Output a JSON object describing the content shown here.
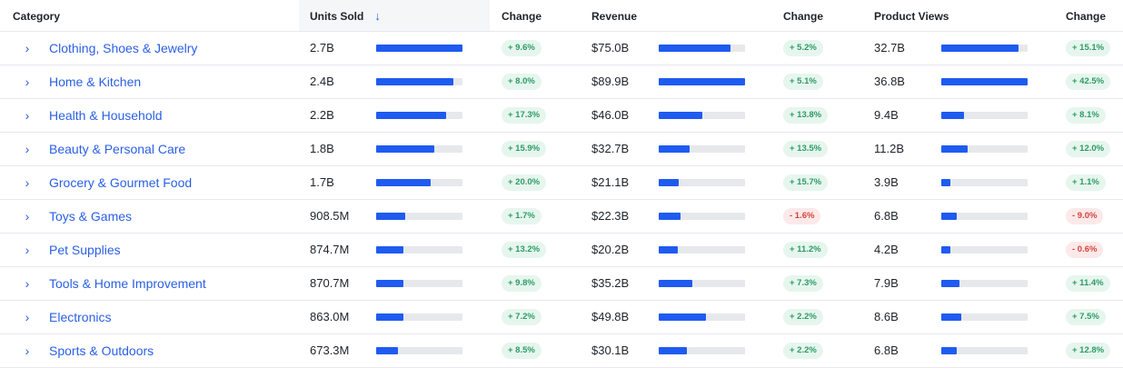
{
  "header": {
    "category": "Category",
    "units_sold": "Units Sold",
    "change1": "Change",
    "revenue": "Revenue",
    "change2": "Change",
    "product_views": "Product Views",
    "change3": "Change",
    "sort_icon": "arrow-down-icon"
  },
  "icons": {
    "expand": "chevron-right-icon"
  },
  "colors": {
    "accent": "#1f5bf0",
    "link": "#2a5fe6",
    "positive": "#2e9b66",
    "negative": "#d2453f"
  },
  "rows": [
    {
      "category": "Clothing, Shoes & Jewelry",
      "units": "2.7B",
      "units_change": "+ 9.6%",
      "revenue": "$75.0B",
      "revenue_change": "+ 5.2%",
      "views": "32.7B",
      "views_change": "+ 15.1%",
      "units_level": 1.0,
      "revenue_level": 0.83,
      "views_level": 0.89
    },
    {
      "category": "Home & Kitchen",
      "units": "2.4B",
      "units_change": "+ 8.0%",
      "revenue": "$89.9B",
      "revenue_change": "+ 5.1%",
      "views": "36.8B",
      "views_change": "+ 42.5%",
      "units_level": 0.89,
      "revenue_level": 1.0,
      "views_level": 1.0
    },
    {
      "category": "Health & Household",
      "units": "2.2B",
      "units_change": "+ 17.3%",
      "revenue": "$46.0B",
      "revenue_change": "+ 13.8%",
      "views": "9.4B",
      "views_change": "+ 8.1%",
      "units_level": 0.81,
      "revenue_level": 0.51,
      "views_level": 0.26
    },
    {
      "category": "Beauty & Personal Care",
      "units": "1.8B",
      "units_change": "+ 15.9%",
      "revenue": "$32.7B",
      "revenue_change": "+ 13.5%",
      "views": "11.2B",
      "views_change": "+ 12.0%",
      "units_level": 0.67,
      "revenue_level": 0.36,
      "views_level": 0.3
    },
    {
      "category": "Grocery & Gourmet Food",
      "units": "1.7B",
      "units_change": "+ 20.0%",
      "revenue": "$21.1B",
      "revenue_change": "+ 15.7%",
      "views": "3.9B",
      "views_change": "+ 1.1%",
      "units_level": 0.63,
      "revenue_level": 0.23,
      "views_level": 0.11
    },
    {
      "category": "Toys & Games",
      "units": "908.5M",
      "units_change": "+ 1.7%",
      "revenue": "$22.3B",
      "revenue_change": "- 1.6%",
      "views": "6.8B",
      "views_change": "- 9.0%",
      "units_level": 0.34,
      "revenue_level": 0.25,
      "views_level": 0.18
    },
    {
      "category": "Pet Supplies",
      "units": "874.7M",
      "units_change": "+ 13.2%",
      "revenue": "$20.2B",
      "revenue_change": "+ 11.2%",
      "views": "4.2B",
      "views_change": "- 0.6%",
      "units_level": 0.32,
      "revenue_level": 0.22,
      "views_level": 0.11
    },
    {
      "category": "Tools & Home Improvement",
      "units": "870.7M",
      "units_change": "+ 9.8%",
      "revenue": "$35.2B",
      "revenue_change": "+ 7.3%",
      "views": "7.9B",
      "views_change": "+ 11.4%",
      "units_level": 0.32,
      "revenue_level": 0.39,
      "views_level": 0.21
    },
    {
      "category": "Electronics",
      "units": "863.0M",
      "units_change": "+ 7.2%",
      "revenue": "$49.8B",
      "revenue_change": "+ 2.2%",
      "views": "8.6B",
      "views_change": "+ 7.5%",
      "units_level": 0.32,
      "revenue_level": 0.55,
      "views_level": 0.23
    },
    {
      "category": "Sports & Outdoors",
      "units": "673.3M",
      "units_change": "+ 8.5%",
      "revenue": "$30.1B",
      "revenue_change": "+ 2.2%",
      "views": "6.8B",
      "views_change": "+ 12.8%",
      "units_level": 0.25,
      "revenue_level": 0.33,
      "views_level": 0.18
    }
  ]
}
